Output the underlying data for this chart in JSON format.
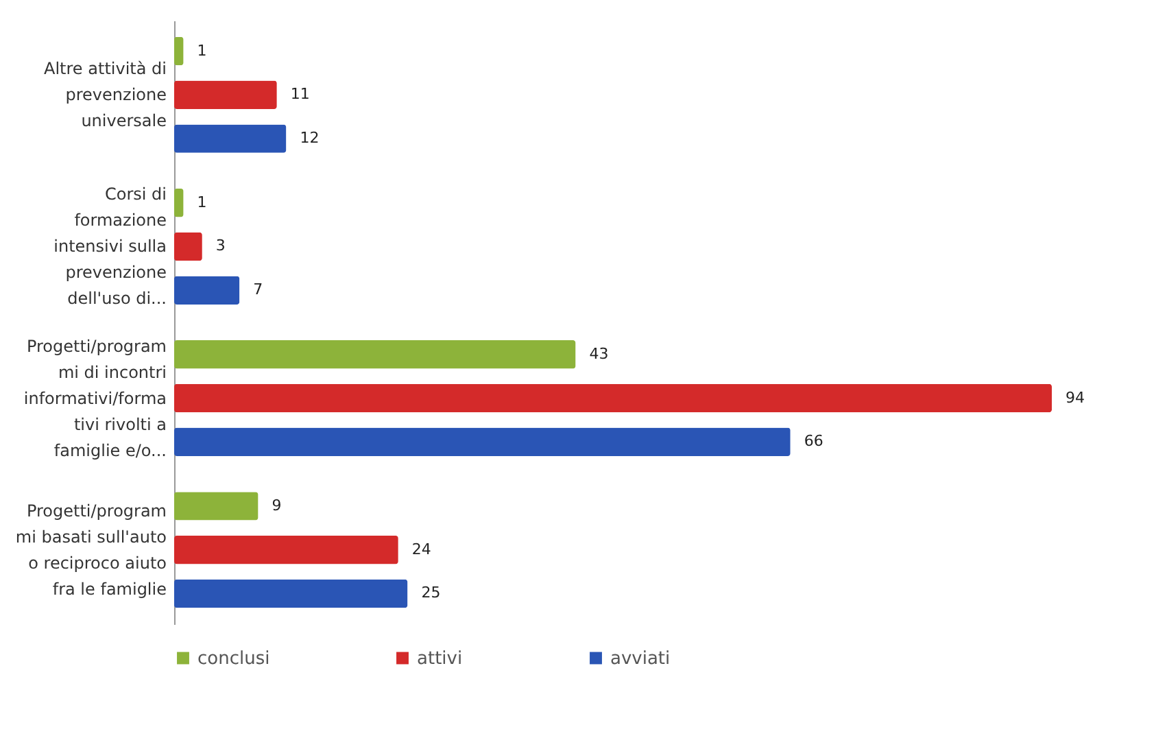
{
  "chart_data": {
    "type": "bar",
    "orientation": "horizontal",
    "data_labels": true,
    "legend": "bottom",
    "categories": [
      "Altre attività di\nprevenzione\nuniversale",
      "Corsi di\nformazione\nintensivi sulla\nprevenzione\ndell'uso di...",
      "Progetti/program\nmi di incontri\ninformativi/forma\ntivi rivolti a\nfamiglie e/o...",
      "Progetti/program\nmi basati sull'auto\no reciproco aiuto\nfra le famiglie"
    ],
    "series": [
      {
        "name": "conclusi",
        "color": "#8db33a",
        "values": [
          1,
          1,
          43,
          9
        ]
      },
      {
        "name": "attivi",
        "color": "#d42a2a",
        "values": [
          11,
          3,
          94,
          24
        ]
      },
      {
        "name": "avviati",
        "color": "#2a55b5",
        "values": [
          12,
          7,
          66,
          25
        ]
      }
    ]
  }
}
